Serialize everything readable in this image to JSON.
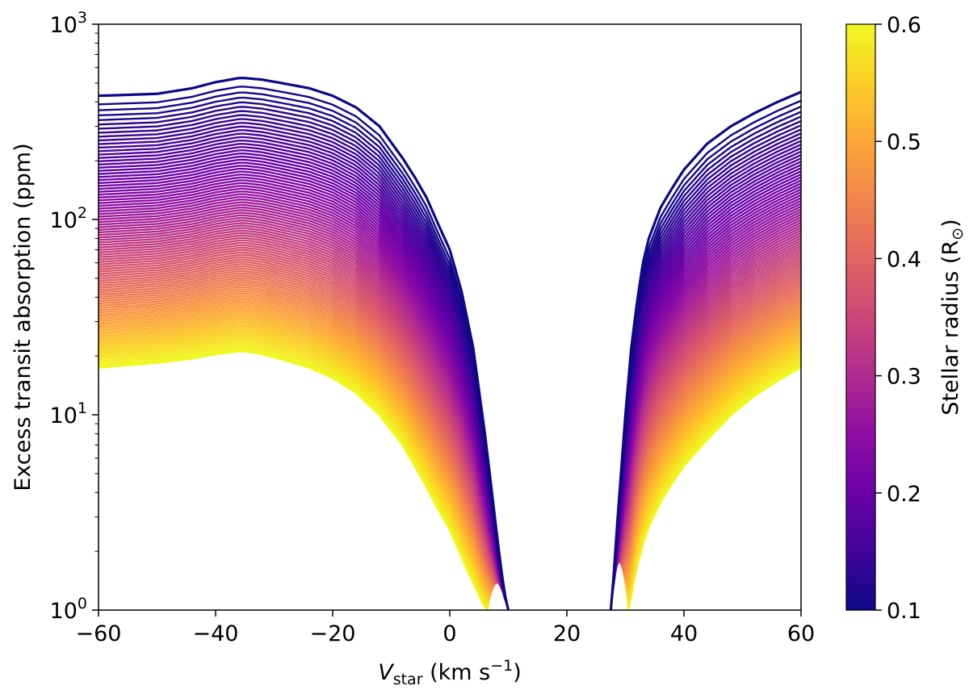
{
  "chart_data": {
    "type": "line",
    "title": "",
    "xlabel": {
      "main": "V",
      "sub": "star",
      "units_pre": " (km s",
      "units_sup": "−1",
      "units_post": ")"
    },
    "ylabel": "Excess transit absorption (ppm)",
    "xlim": [
      -60,
      60
    ],
    "ylim": [
      1,
      1000
    ],
    "yscale": "log",
    "grid": false,
    "x_ticks": [
      -60,
      -40,
      -20,
      0,
      20,
      40,
      60
    ],
    "x_tick_labels": [
      "−60",
      "−40",
      "−20",
      "0",
      "20",
      "40",
      "60"
    ],
    "y_ticks": [
      {
        "value": 1,
        "base": "10",
        "exp": "0"
      },
      {
        "value": 10,
        "base": "10",
        "exp": "1"
      },
      {
        "value": 100,
        "base": "10",
        "exp": "2"
      },
      {
        "value": 1000,
        "base": "10",
        "exp": "3"
      }
    ],
    "colorbar": {
      "label_main": "Stellar radius (R",
      "label_sub": "⊙",
      "label_end": ")",
      "colormap": "plasma",
      "range": [
        0.1,
        0.6
      ],
      "ticks": [
        0.1,
        0.2,
        0.3,
        0.4,
        0.5,
        0.6
      ],
      "tick_labels": [
        "0.1",
        "0.2",
        "0.3",
        "0.4",
        "0.5",
        "0.6"
      ]
    },
    "stellar_radius_range": [
      0.1,
      0.6
    ],
    "series_count": 101,
    "envelopes": {
      "left_branch": {
        "radius_0_1": {
          "x": [
            -60,
            -50,
            -44,
            -40,
            -36,
            -35,
            -32,
            -28,
            -24,
            -20,
            -16,
            -12,
            -8,
            -6,
            -4,
            -2,
            0,
            2,
            4,
            6,
            7,
            8,
            8.8,
            9.4,
            10
          ],
          "y": [
            430,
            440,
            470,
            505,
            530,
            530,
            520,
            495,
            470,
            430,
            375,
            300,
            205,
            165,
            130,
            95,
            70,
            43,
            22,
            8,
            4.5,
            2.5,
            1.6,
            1.2,
            1.0
          ]
        },
        "radius_0_6": {
          "x": [
            -60,
            -50,
            -44,
            -40,
            -36,
            -35,
            -32,
            -28,
            -24,
            -20,
            -16,
            -12,
            -8,
            -6,
            -4,
            -2,
            0,
            1,
            2,
            3,
            4,
            5,
            5.5,
            6,
            6.5
          ],
          "y": [
            17.5,
            18.5,
            19.5,
            20.5,
            21.2,
            21.2,
            20.5,
            19.0,
            17.5,
            15.5,
            13.0,
            10.0,
            7.0,
            5.5,
            4.3,
            3.3,
            2.6,
            2.2,
            1.9,
            1.6,
            1.4,
            1.2,
            1.1,
            1.05,
            1.0
          ]
        }
      },
      "right_branch": {
        "radius_0_1": {
          "x": [
            27.5,
            28,
            28.5,
            29,
            30,
            31,
            32,
            33,
            34,
            36,
            38,
            40,
            44,
            48,
            52,
            56,
            60
          ],
          "y": [
            1.0,
            1.5,
            2.5,
            4.0,
            10,
            22,
            38,
            60,
            80,
            115,
            145,
            180,
            245,
            300,
            350,
            400,
            450
          ]
        },
        "radius_0_6": {
          "x": [
            30.5,
            31,
            31.5,
            32,
            33,
            34,
            36,
            38,
            40,
            44,
            48,
            52,
            56,
            60
          ],
          "y": [
            1.0,
            1.2,
            1.45,
            1.7,
            2.2,
            2.7,
            3.6,
            4.5,
            5.5,
            7.5,
            10.0,
            12.5,
            15.0,
            17.5
          ]
        }
      }
    }
  }
}
